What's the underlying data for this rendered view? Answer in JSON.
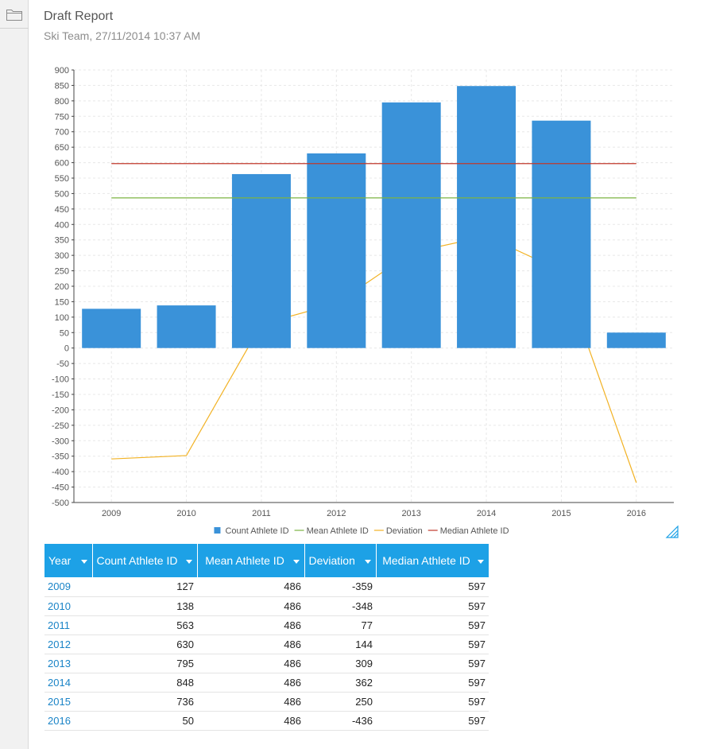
{
  "report": {
    "title": "Draft Report",
    "subtitle": "Ski Team, 27/11/2014 10:37 AM"
  },
  "sidebar": {
    "icon": "folder-icon"
  },
  "colors": {
    "bar": "#3a92d9",
    "mean": "#7cb342",
    "deviation": "#f2b224",
    "median": "#c0392b",
    "header": "#1da1e6",
    "link": "#1a84c7"
  },
  "chart_data": {
    "type": "bar",
    "categories": [
      "2009",
      "2010",
      "2011",
      "2012",
      "2013",
      "2014",
      "2015",
      "2016"
    ],
    "series": [
      {
        "name": "Count Athlete ID",
        "type": "bar",
        "values": [
          127,
          138,
          563,
          630,
          795,
          848,
          736,
          50
        ]
      },
      {
        "name": "Mean Athlete ID",
        "type": "line",
        "values": [
          486,
          486,
          486,
          486,
          486,
          486,
          486,
          486
        ]
      },
      {
        "name": "Deviation",
        "type": "line",
        "values": [
          -359,
          -348,
          77,
          144,
          309,
          362,
          250,
          -436
        ]
      },
      {
        "name": "Median Athlete ID",
        "type": "line",
        "values": [
          597,
          597,
          597,
          597,
          597,
          597,
          597,
          597
        ]
      }
    ],
    "ylim": [
      -500,
      900
    ],
    "ytick_step": 50,
    "grid": true,
    "legend": "bottom-center"
  },
  "table": {
    "columns": [
      {
        "label": "Year"
      },
      {
        "label": "Count Athlete ID"
      },
      {
        "label": "Mean Athlete ID"
      },
      {
        "label": "Deviation"
      },
      {
        "label": "Median Athlete ID"
      }
    ],
    "rows": [
      [
        "2009",
        "127",
        "486",
        "-359",
        "597"
      ],
      [
        "2010",
        "138",
        "486",
        "-348",
        "597"
      ],
      [
        "2011",
        "563",
        "486",
        "77",
        "597"
      ],
      [
        "2012",
        "630",
        "486",
        "144",
        "597"
      ],
      [
        "2013",
        "795",
        "486",
        "309",
        "597"
      ],
      [
        "2014",
        "848",
        "486",
        "362",
        "597"
      ],
      [
        "2015",
        "736",
        "486",
        "250",
        "597"
      ],
      [
        "2016",
        "50",
        "486",
        "-436",
        "597"
      ]
    ]
  }
}
